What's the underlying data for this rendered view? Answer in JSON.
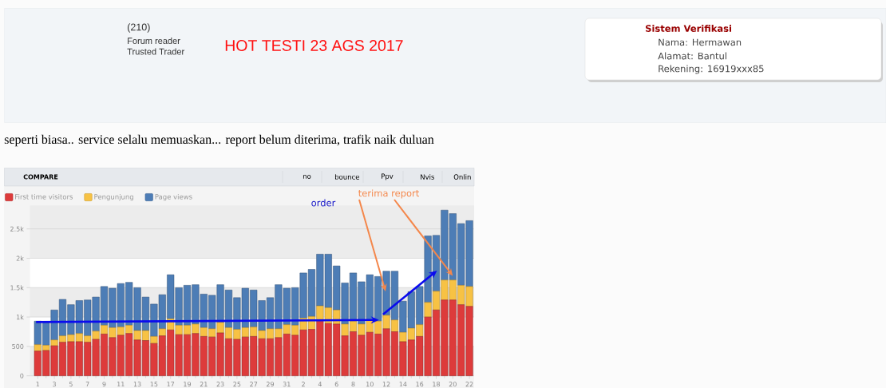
{
  "chart_data": {
    "type": "bar",
    "title": "HOT TESTI 23 AGS 2017",
    "subtitle": "seperti biasa.. service selalu memuaskan... report belum diterima, trafik naik duluan",
    "annotations": [
      "(210)",
      "Forum reader",
      "Trusted Trader",
      "Sistem Verifikasi",
      "Nama: Hermawan",
      "Alamat: Bantul",
      "Rekening: 16919xxx85",
      "COMPARE",
      "no",
      "bounce",
      "Ppv",
      "Nvis",
      "Onlin",
      "order",
      {
        "text": "terima report",
        "x": "20",
        "y": 1700
      }
    ],
    "categories": [
      "1",
      null,
      "3",
      null,
      "5",
      null,
      "7",
      null,
      "9",
      null,
      "11",
      null,
      "13",
      null,
      "15",
      null,
      "17",
      null,
      "19",
      null,
      "21",
      null,
      "23",
      null,
      "25",
      null,
      "27",
      null,
      "29",
      null,
      "31",
      null,
      "2",
      null,
      "4",
      null,
      "6",
      null,
      "8",
      null,
      "10",
      null,
      "12",
      null,
      "14",
      null,
      "16",
      null,
      "18",
      null,
      "20",
      null,
      "22"
    ],
    "stacked": true,
    "series": [
      {
        "name": "First time visitors",
        "color": "#dd3b3b",
        "values": [
          420,
          430,
          510,
          570,
          580,
          580,
          570,
          620,
          710,
          650,
          690,
          720,
          610,
          600,
          550,
          680,
          780,
          700,
          700,
          720,
          670,
          660,
          730,
          630,
          620,
          660,
          670,
          630,
          630,
          650,
          710,
          690,
          780,
          790,
          930,
          890,
          880,
          680,
          750,
          690,
          740,
          710,
          800,
          750,
          580,
          610,
          670,
          1000,
          1120,
          1290,
          1290,
          1210,
          1180
        ]
      },
      {
        "name": "Pengunjung",
        "color": "#f7c244",
        "values": [
          110,
          90,
          100,
          110,
          120,
          140,
          110,
          140,
          150,
          170,
          140,
          140,
          160,
          170,
          120,
          120,
          190,
          160,
          160,
          160,
          150,
          140,
          180,
          190,
          170,
          160,
          160,
          140,
          170,
          150,
          160,
          170,
          200,
          220,
          260,
          270,
          240,
          200,
          180,
          190,
          200,
          220,
          230,
          200,
          160,
          200,
          200,
          250,
          320,
          340,
          340,
          330,
          340
        ]
      },
      {
        "name": "Page views",
        "color": "#4d7db6",
        "values": [
          400,
          390,
          510,
          620,
          510,
          560,
          610,
          580,
          660,
          670,
          740,
          730,
          730,
          570,
          550,
          580,
          750,
          640,
          680,
          670,
          570,
          570,
          640,
          640,
          540,
          670,
          630,
          510,
          530,
          750,
          620,
          640,
          770,
          800,
          880,
          910,
          750,
          700,
          820,
          720,
          780,
          760,
          750,
          830,
          530,
          620,
          650,
          1130,
          950,
          1190,
          1130,
          1050,
          1120
        ]
      }
    ],
    "ylim": [
      0,
      2900
    ],
    "yticks": [
      0,
      500,
      {
        "value": 1000,
        "label": "1k"
      },
      {
        "value": 1500,
        "label": "1.5k"
      },
      {
        "value": 2000,
        "label": "2k"
      },
      {
        "value": 2500,
        "label": "2.5k"
      }
    ],
    "grid": "y",
    "legend": "top left"
  }
}
